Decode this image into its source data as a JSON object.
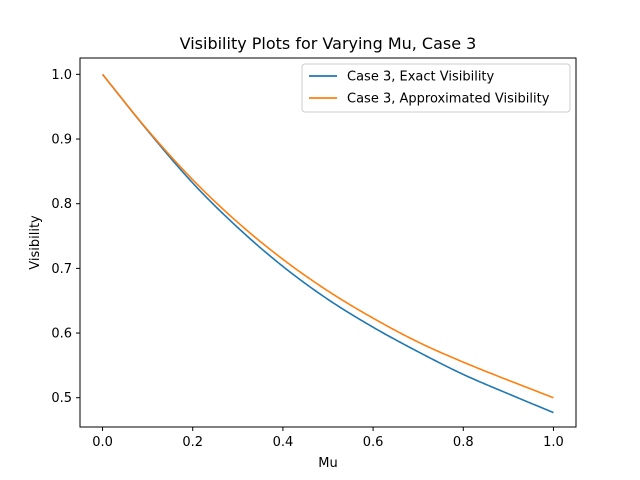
{
  "chart_data": {
    "type": "line",
    "title": "Visibility Plots for Varying Mu, Case 3",
    "xlabel": "Mu",
    "ylabel": "Visibility",
    "xlim": [
      -0.05,
      1.05
    ],
    "ylim": [
      0.4547,
      1.0253
    ],
    "xticks": [
      0.0,
      0.2,
      0.4,
      0.6,
      0.8,
      1.0
    ],
    "xtick_labels": [
      "0.0",
      "0.2",
      "0.4",
      "0.6",
      "0.8",
      "1.0"
    ],
    "yticks": [
      0.5,
      0.6,
      0.7,
      0.8,
      0.9,
      1.0
    ],
    "ytick_labels": [
      "0.5",
      "0.6",
      "0.7",
      "0.8",
      "0.9",
      "1.0"
    ],
    "grid": false,
    "legend_position": "top-right",
    "x": [
      0.0,
      0.1,
      0.2,
      0.3,
      0.4,
      0.5,
      0.6,
      0.7,
      0.8,
      0.9,
      1.0
    ],
    "series": [
      {
        "name": "Case 3, Exact Visibility",
        "color": "#1f77b4",
        "values": [
          1.0,
          0.913,
          0.832,
          0.763,
          0.703,
          0.652,
          0.609,
          0.571,
          0.536,
          0.506,
          0.477
        ]
      },
      {
        "name": "Case 3, Approximated Visibility",
        "color": "#ff7f0e",
        "values": [
          1.0,
          0.914,
          0.837,
          0.771,
          0.714,
          0.665,
          0.623,
          0.586,
          0.555,
          0.527,
          0.5
        ]
      }
    ]
  }
}
